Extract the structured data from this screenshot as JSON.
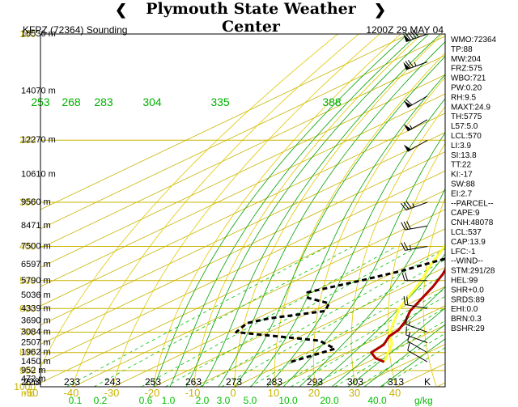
{
  "header": {
    "title": "Plymouth State Weather Center",
    "station_label": "KFPZ (72364) Sounding",
    "time_label": "1200Z 29 MAY 04"
  },
  "colors": {
    "temperature": "#b00000",
    "dewpoint": "#000000",
    "parcel": "#ffff40",
    "isobar": "#c8b400",
    "dry_adiabat": "#e0c800",
    "moist_adiabat": "#00a000",
    "mixing_ratio": "#00c000",
    "tick_text": "#c8b400",
    "theta_text": "#00b000"
  },
  "chart_data": {
    "type": "line",
    "title": "KFPZ (72364) Sounding 1200Z 29 MAY 04",
    "y_scale": "log",
    "ylim": [
      1000,
      100
    ],
    "xlim": [
      -50,
      40
    ],
    "pressure_ticks": [
      100,
      200,
      300,
      400,
      500,
      600,
      700,
      800,
      900,
      1000
    ],
    "pressure_unit": "mb",
    "temp_ticks": [
      -50,
      -40,
      -30,
      -20,
      -10,
      0,
      10,
      20,
      30,
      40
    ],
    "kelvin_ticks": [
      223,
      233,
      243,
      253,
      263,
      273,
      283,
      293,
      303,
      313
    ],
    "kelvin_unit": "K",
    "mixing_ratio_ticks": [
      "0.1",
      "0.2",
      "0.6",
      "1.0",
      "2.0",
      "3.0",
      "5.0",
      "10.0",
      "20.0",
      "40.0"
    ],
    "mixing_ratio_unit": "g/kg",
    "theta_labels": [
      "253",
      "268",
      "283",
      "304",
      "335",
      "388"
    ],
    "height_labels": [
      "16530 m",
      "14070 m",
      "12270 m",
      "10610 m",
      "9560 m",
      "8471 m",
      "7500 m",
      "6597 m",
      "5790 m",
      "5036 m",
      "4339 m",
      "3690 m",
      "3084 m",
      "2507 m",
      "1962 m",
      "1450 m",
      "952 m",
      "472 m",
      "26 m"
    ],
    "series": [
      {
        "name": "Temperature",
        "points": [
          [
            850,
            24
          ],
          [
            830,
            20
          ],
          [
            800,
            16
          ],
          [
            760,
            15
          ],
          [
            720,
            12
          ],
          [
            690,
            11
          ],
          [
            650,
            8
          ],
          [
            610,
            4
          ],
          [
            570,
            1
          ],
          [
            520,
            -3
          ],
          [
            480,
            -7
          ],
          [
            440,
            -12
          ],
          [
            400,
            -18
          ],
          [
            370,
            -20
          ],
          [
            340,
            -25
          ],
          [
            300,
            -33
          ],
          [
            260,
            -41
          ],
          [
            220,
            -49
          ],
          [
            190,
            -54
          ],
          [
            160,
            -57
          ],
          [
            135,
            -57
          ],
          [
            115,
            -55
          ],
          [
            100,
            -52
          ]
        ]
      },
      {
        "name": "Dewpoint",
        "points": [
          [
            850,
            1
          ],
          [
            780,
            5
          ],
          [
            740,
            -3
          ],
          [
            700,
            -28
          ],
          [
            660,
            -30
          ],
          [
            640,
            -27
          ],
          [
            610,
            -17
          ],
          [
            580,
            -20
          ],
          [
            560,
            -28
          ],
          [
            540,
            -31
          ],
          [
            500,
            -24
          ],
          [
            470,
            -19
          ],
          [
            430,
            -14
          ],
          [
            400,
            -19
          ],
          [
            360,
            -24
          ],
          [
            330,
            -30
          ],
          [
            300,
            -34
          ],
          [
            260,
            -36
          ],
          [
            220,
            -38
          ],
          [
            190,
            -41
          ],
          [
            150,
            -35
          ],
          [
            125,
            -30
          ],
          [
            100,
            -24
          ]
        ]
      },
      {
        "name": "Parcel",
        "points": [
          [
            850,
            24
          ],
          [
            760,
            17
          ],
          [
            700,
            10
          ],
          [
            600,
            0
          ],
          [
            500,
            -9
          ],
          [
            450,
            -15
          ],
          [
            400,
            -21
          ],
          [
            350,
            -29
          ],
          [
            300,
            -37
          ],
          [
            250,
            -48
          ],
          [
            200,
            -58
          ],
          [
            160,
            -68
          ],
          [
            125,
            -75
          ],
          [
            100,
            -80
          ]
        ]
      }
    ],
    "wind_barbs": [
      {
        "p": 100,
        "dir": 250,
        "kt": 90
      },
      {
        "p": 120,
        "dir": 250,
        "kt": 75
      },
      {
        "p": 150,
        "dir": 240,
        "kt": 60
      },
      {
        "p": 175,
        "dir": 240,
        "kt": 55
      },
      {
        "p": 200,
        "dir": 240,
        "kt": 50
      },
      {
        "p": 300,
        "dir": 250,
        "kt": 35
      },
      {
        "p": 350,
        "dir": 260,
        "kt": 30
      },
      {
        "p": 400,
        "dir": 260,
        "kt": 25
      },
      {
        "p": 500,
        "dir": 270,
        "kt": 20
      },
      {
        "p": 600,
        "dir": 280,
        "kt": 20
      },
      {
        "p": 700,
        "dir": 290,
        "kt": 15
      },
      {
        "p": 750,
        "dir": 290,
        "kt": 15
      },
      {
        "p": 800,
        "dir": 300,
        "kt": 10
      },
      {
        "p": 850,
        "dir": 300,
        "kt": 10
      }
    ]
  },
  "indices": [
    "WMO:72364",
    "TP:88",
    "MW:204",
    "FRZ:575",
    "WBO:721",
    "PW:0.20",
    "RH:9.5",
    "MAXT:24.9",
    "TH:5775",
    "L57:5.0",
    "LCL:570",
    "LI:3.9",
    "SI:13.8",
    "TT:22",
    "KI:-17",
    "SW:88",
    "EI:2.7",
    "--PARCEL--",
    "CAPE:9",
    "CNH:48078",
    "LCL:537",
    "CAP:13.9",
    "LFC:-1",
    "--WIND--",
    "STM:291/28",
    "HEL:99",
    "SHR+0.0",
    "SRDS:89",
    "EHI:0.0",
    "BRN:0.3",
    "BSHR:29"
  ]
}
